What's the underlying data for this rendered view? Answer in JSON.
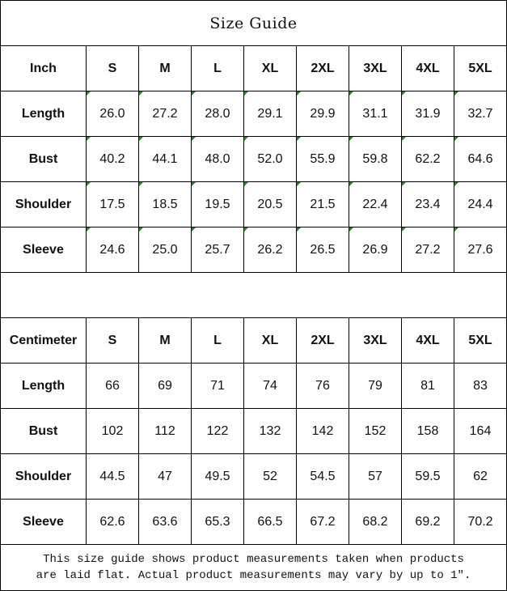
{
  "title": "Size Guide",
  "sizes": [
    "S",
    "M",
    "L",
    "XL",
    "2XL",
    "3XL",
    "4XL",
    "5XL"
  ],
  "inch": {
    "unit_label": "Inch",
    "rows": [
      {
        "label": "Length",
        "values": [
          "26.0",
          "27.2",
          "28.0",
          "29.1",
          "29.9",
          "31.1",
          "31.9",
          "32.7"
        ]
      },
      {
        "label": "Bust",
        "values": [
          "40.2",
          "44.1",
          "48.0",
          "52.0",
          "55.9",
          "59.8",
          "62.2",
          "64.6"
        ]
      },
      {
        "label": "Shoulder",
        "values": [
          "17.5",
          "18.5",
          "19.5",
          "20.5",
          "21.5",
          "22.4",
          "23.4",
          "24.4"
        ]
      },
      {
        "label": "Sleeve",
        "values": [
          "24.6",
          "25.0",
          "25.7",
          "26.2",
          "26.5",
          "26.9",
          "27.2",
          "27.6"
        ]
      }
    ]
  },
  "centimeter": {
    "unit_label": "Centimeter",
    "rows": [
      {
        "label": "Length",
        "values": [
          "66",
          "69",
          "71",
          "74",
          "76",
          "79",
          "81",
          "83"
        ]
      },
      {
        "label": "Bust",
        "values": [
          "102",
          "112",
          "122",
          "132",
          "142",
          "152",
          "158",
          "164"
        ]
      },
      {
        "label": "Shoulder",
        "values": [
          "44.5",
          "47",
          "49.5",
          "52",
          "54.5",
          "57",
          "59.5",
          "62"
        ]
      },
      {
        "label": "Sleeve",
        "values": [
          "62.6",
          "63.6",
          "65.3",
          "66.5",
          "67.2",
          "68.2",
          "69.2",
          "70.2"
        ]
      }
    ]
  },
  "note_line1": "This size guide shows product measurements taken when products",
  "note_line2": "are laid flat. Actual product measurements may vary by up to 1″.",
  "marker_color": "#1a8a1a"
}
